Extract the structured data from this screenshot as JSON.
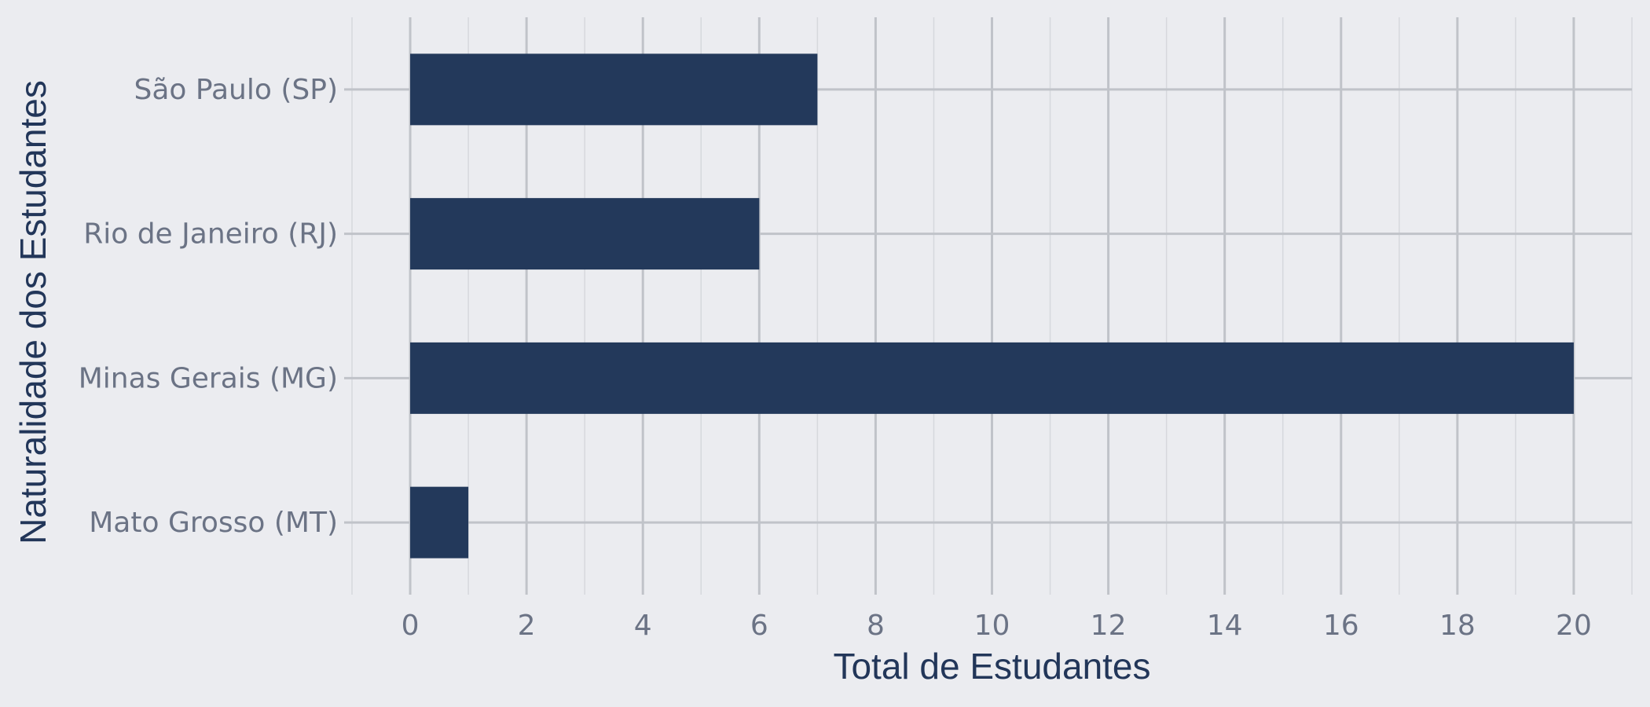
{
  "chart_data": {
    "type": "bar",
    "orientation": "horizontal",
    "title": "",
    "xlabel": "Total de Estudantes",
    "ylabel": "Naturalidade dos Estudantes",
    "categories": [
      "Mato Grosso (MT)",
      "Minas Gerais (MG)",
      "Rio de Janeiro (RJ)",
      "São Paulo (SP)"
    ],
    "values": [
      1,
      20,
      6,
      7
    ],
    "xlim": [
      -1,
      21
    ],
    "xticks": [
      0,
      2,
      4,
      6,
      8,
      10,
      12,
      14,
      16,
      18,
      20
    ],
    "grid": true,
    "legend": "none",
    "colors": {
      "background": "#ebecf0",
      "bar": "#23395b",
      "grid_major": "#c0c3c9",
      "grid_minor": "#d6d8dd",
      "tick_text": "#6b7385",
      "title_text": "#223659"
    }
  }
}
